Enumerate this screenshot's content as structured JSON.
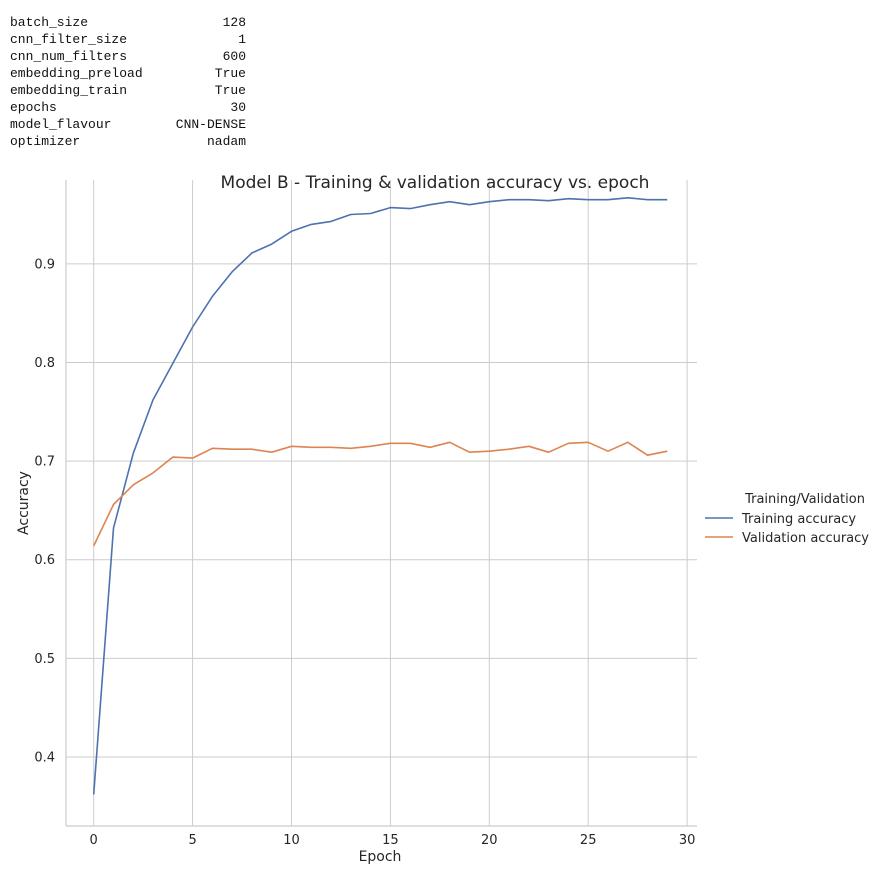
{
  "params": [
    {
      "key": "batch_size",
      "value": "128"
    },
    {
      "key": "cnn_filter_size",
      "value": "1"
    },
    {
      "key": "cnn_num_filters",
      "value": "600"
    },
    {
      "key": "embedding_preload",
      "value": "True"
    },
    {
      "key": "embedding_train",
      "value": "True"
    },
    {
      "key": "epochs",
      "value": "30"
    },
    {
      "key": "model_flavour",
      "value": "CNN-DENSE"
    },
    {
      "key": "optimizer",
      "value": "nadam"
    }
  ],
  "chart_data": {
    "type": "line",
    "title": "Model B - Training & validation accuracy vs. epoch",
    "xlabel": "Epoch",
    "ylabel": "Accuracy",
    "xlim": [
      -1.4,
      30.5
    ],
    "ylim": [
      0.33,
      0.985
    ],
    "xticks": [
      0,
      5,
      10,
      15,
      20,
      25,
      30
    ],
    "yticks": [
      0.4,
      0.5,
      0.6,
      0.7,
      0.8,
      0.9
    ],
    "ytick_labels": [
      "0.4",
      "0.5",
      "0.6",
      "0.7",
      "0.8",
      "0.9"
    ],
    "grid": true,
    "legend": {
      "title": "Training/Validation",
      "placement": "right"
    },
    "x": [
      0,
      1,
      2,
      3,
      4,
      5,
      6,
      7,
      8,
      9,
      10,
      11,
      12,
      13,
      14,
      15,
      16,
      17,
      18,
      19,
      20,
      21,
      22,
      23,
      24,
      25,
      26,
      27,
      28,
      29
    ],
    "series": [
      {
        "name": "Training accuracy",
        "color": "#4c72b0",
        "values": [
          0.362,
          0.632,
          0.708,
          0.762,
          0.799,
          0.836,
          0.867,
          0.892,
          0.911,
          0.92,
          0.933,
          0.94,
          0.943,
          0.95,
          0.951,
          0.957,
          0.956,
          0.96,
          0.963,
          0.96,
          0.963,
          0.965,
          0.965,
          0.964,
          0.966,
          0.965,
          0.965,
          0.967,
          0.965,
          0.965
        ]
      },
      {
        "name": "Validation accuracy",
        "color": "#dd8452",
        "values": [
          0.614,
          0.656,
          0.676,
          0.688,
          0.704,
          0.703,
          0.713,
          0.712,
          0.712,
          0.709,
          0.715,
          0.714,
          0.714,
          0.713,
          0.715,
          0.718,
          0.718,
          0.714,
          0.719,
          0.709,
          0.71,
          0.712,
          0.715,
          0.709,
          0.718,
          0.719,
          0.71,
          0.719,
          0.706,
          0.71
        ]
      }
    ]
  }
}
